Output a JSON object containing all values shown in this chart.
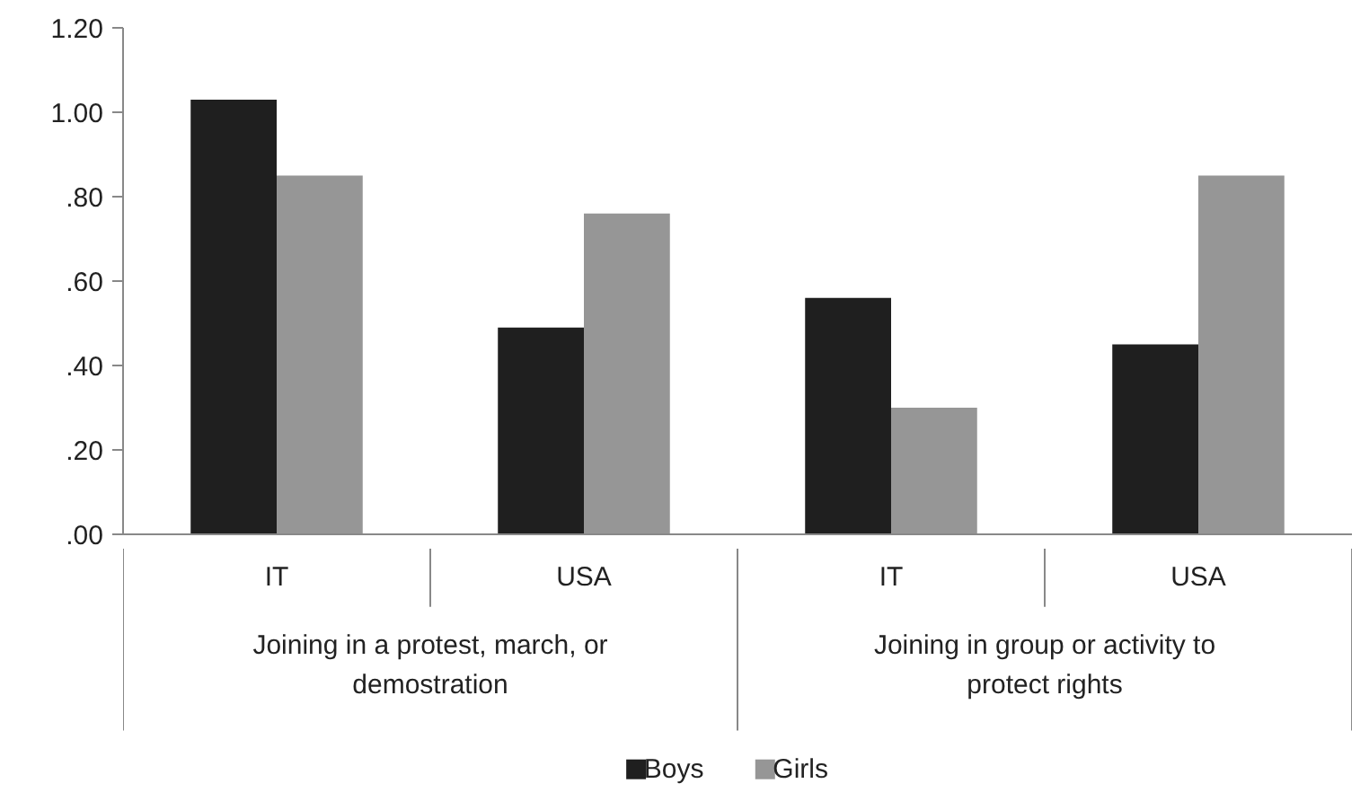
{
  "chart_data": {
    "type": "bar",
    "categories": [
      "IT",
      "USA",
      "IT",
      "USA"
    ],
    "series": [
      {
        "name": "Boys",
        "color": "#1f1f1f",
        "values": [
          1.03,
          0.49,
          0.56,
          0.45
        ]
      },
      {
        "name": "Girls",
        "color": "#969696",
        "values": [
          0.85,
          0.76,
          0.3,
          0.85
        ]
      }
    ],
    "ylim": [
      0,
      1.2
    ],
    "yticks": [
      {
        "value": 0,
        "label": ".00"
      },
      {
        "value": 0.2,
        "label": ".20"
      },
      {
        "value": 0.4,
        "label": ".40"
      },
      {
        "value": 0.6,
        "label": ".60"
      },
      {
        "value": 0.8,
        "label": ".80"
      },
      {
        "value": 1.0,
        "label": "1.00"
      },
      {
        "value": 1.2,
        "label": "1.20"
      }
    ],
    "annotations": [
      "Joining in a protest, march, or demostration",
      "Joining in group or activity to protect rights"
    ],
    "grid": false,
    "legend": "bottom"
  }
}
